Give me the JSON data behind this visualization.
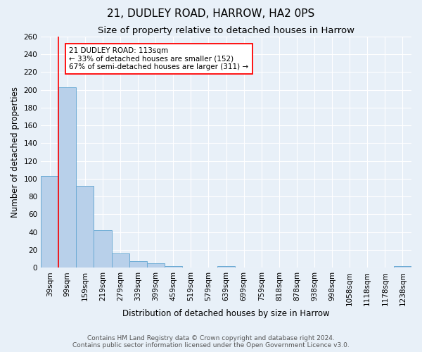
{
  "title": "21, DUDLEY ROAD, HARROW, HA2 0PS",
  "subtitle": "Size of property relative to detached houses in Harrow",
  "bar_labels": [
    "39sqm",
    "99sqm",
    "159sqm",
    "219sqm",
    "279sqm",
    "339sqm",
    "399sqm",
    "459sqm",
    "519sqm",
    "579sqm",
    "639sqm",
    "699sqm",
    "759sqm",
    "818sqm",
    "878sqm",
    "938sqm",
    "998sqm",
    "1058sqm",
    "1118sqm",
    "1178sqm",
    "1238sqm"
  ],
  "bar_values": [
    103,
    203,
    92,
    42,
    16,
    7,
    5,
    2,
    0,
    0,
    2,
    0,
    0,
    0,
    0,
    0,
    0,
    0,
    0,
    0,
    2
  ],
  "bar_color": "#b8d0ea",
  "bar_edge_color": "#6aaad4",
  "xlabel": "Distribution of detached houses by size in Harrow",
  "ylabel": "Number of detached properties",
  "ylim": [
    0,
    260
  ],
  "yticks": [
    0,
    20,
    40,
    60,
    80,
    100,
    120,
    140,
    160,
    180,
    200,
    220,
    240,
    260
  ],
  "red_line_x": 0.5,
  "annotation_title": "21 DUDLEY ROAD: 113sqm",
  "annotation_line1": "← 33% of detached houses are smaller (152)",
  "annotation_line2": "67% of semi-detached houses are larger (311) →",
  "footer_line1": "Contains HM Land Registry data © Crown copyright and database right 2024.",
  "footer_line2": "Contains public sector information licensed under the Open Government Licence v3.0.",
  "background_color": "#e8f0f8",
  "plot_bg_color": "#e8f0f8",
  "grid_color": "#ffffff",
  "title_fontsize": 11,
  "subtitle_fontsize": 9.5,
  "axis_label_fontsize": 8.5,
  "tick_fontsize": 7.5,
  "footer_fontsize": 6.5,
  "annotation_fontsize": 7.5
}
